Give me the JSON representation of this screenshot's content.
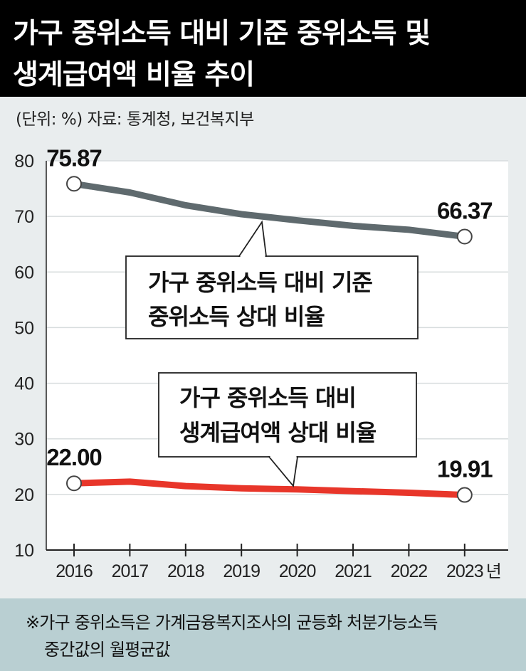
{
  "title": {
    "line1": "가구 중위소득 대비 기준 중위소득 및",
    "line2": "생계급여액 비율 추이"
  },
  "unit_source": "(단위: %)   자료: 통계청, 보건복지부",
  "footnote": {
    "line1": "※가구 중위소득은 가계금융복지조사의 균등화 처분가능소득",
    "line2": "중간값의 월평균값"
  },
  "colors": {
    "series1": "#5f6a6e",
    "series2": "#e8362a",
    "background": "#e9edee",
    "title_bg": "#000000",
    "footer_bg": "#b9cfd2"
  },
  "chart_data": {
    "type": "line",
    "x": [
      "2016",
      "2017",
      "2018",
      "2019",
      "2020",
      "2021",
      "2022",
      "2023"
    ],
    "x_unit": "년",
    "ylim": [
      10,
      80
    ],
    "yticks": [
      10,
      20,
      30,
      40,
      50,
      60,
      70,
      80
    ],
    "grid": true,
    "series": [
      {
        "name": "가구 중위소득 대비 기준 중위소득 상대 비율",
        "name_lines": [
          "가구 중위소득 대비 기준",
          "중위소득 상대 비율"
        ],
        "values": [
          75.87,
          74.3,
          72.0,
          70.4,
          69.3,
          68.3,
          67.6,
          66.37
        ],
        "labels": [
          "75.87",
          "",
          "",
          "",
          "",
          "",
          "",
          "66.37"
        ]
      },
      {
        "name": "가구 중위소득 대비 생계급여액 상대 비율",
        "name_lines": [
          "가구 중위소득 대비",
          "생계급여액 상대 비율"
        ],
        "values": [
          22.0,
          22.3,
          21.5,
          21.1,
          20.9,
          20.6,
          20.3,
          19.91
        ],
        "labels": [
          "22.00",
          "",
          "",
          "",
          "",
          "",
          "",
          "19.91"
        ]
      }
    ]
  }
}
